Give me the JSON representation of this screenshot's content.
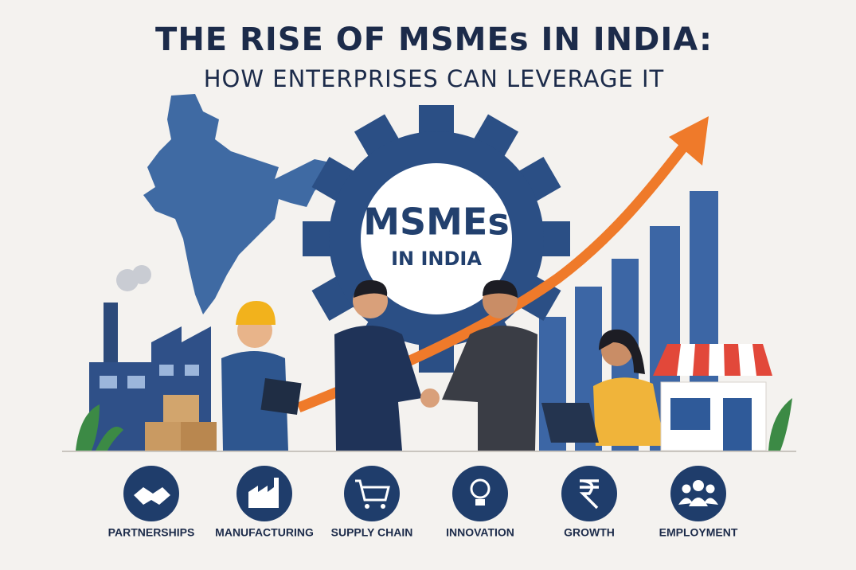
{
  "header": {
    "title": "THE RISE OF MSMEs IN INDIA:",
    "subtitle": "HOW ENTERPRISES CAN LEVERAGE IT"
  },
  "gear": {
    "title": "MSMEs",
    "subtitle": "IN INDIA"
  },
  "icons": [
    {
      "label": "PARTNERSHIPS"
    },
    {
      "label": "MANUFACTURING"
    },
    {
      "label": "SUPPLY CHAIN"
    },
    {
      "label": "INNOVATION"
    },
    {
      "label": "GROWTH"
    },
    {
      "label": "EMPLOYMENT"
    }
  ]
}
